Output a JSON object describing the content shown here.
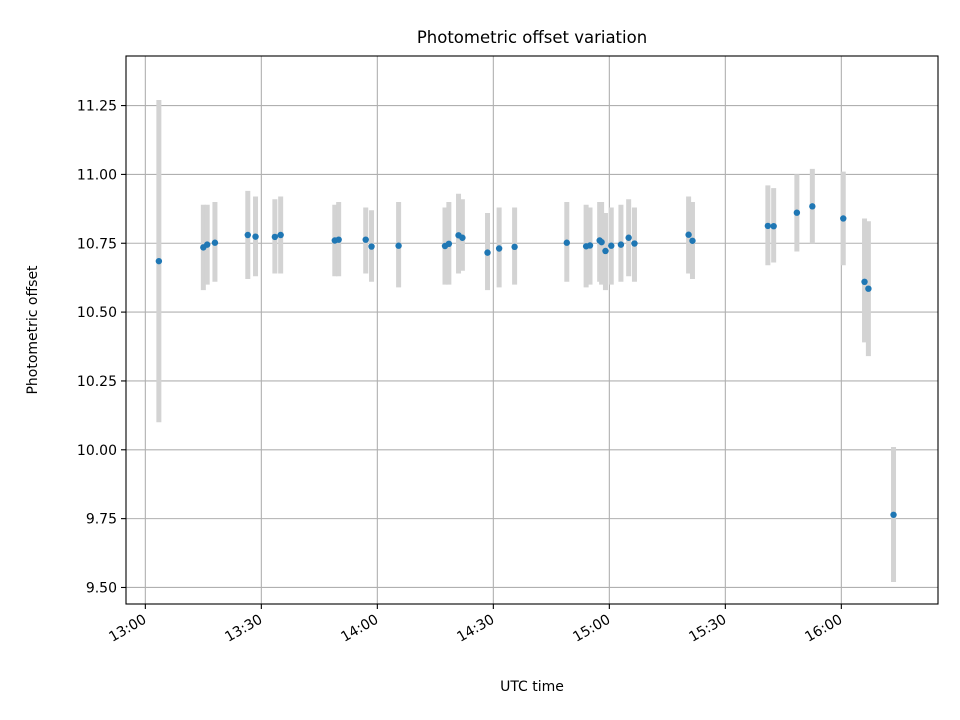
{
  "chart_data": {
    "type": "scatter",
    "title": "Photometric offset variation",
    "xlabel": "UTC time",
    "ylabel": "Photometric offset",
    "x_unit": "time of day (HH:MM)",
    "xlim": [
      "12:55",
      "16:25"
    ],
    "ylim": [
      9.44,
      11.43
    ],
    "xticks": [
      "13:00",
      "13:30",
      "14:00",
      "14:30",
      "15:00",
      "15:30",
      "16:00"
    ],
    "yticks": [
      "9.50",
      "9.75",
      "10.00",
      "10.25",
      "10.50",
      "10.75",
      "11.00",
      "11.25"
    ],
    "grid": true,
    "xtick_rotation": 30,
    "marker_color": "#1f77b4",
    "errorbar_color": "#d3d3d3",
    "series": [
      {
        "points": [
          {
            "x": "13:03:30",
            "y": 10.685,
            "ylo": 10.1,
            "yhi": 11.27
          },
          {
            "x": "13:15:00",
            "y": 10.735,
            "ylo": 10.58,
            "yhi": 10.89
          },
          {
            "x": "13:16:00",
            "y": 10.745,
            "ylo": 10.6,
            "yhi": 10.89
          },
          {
            "x": "13:18:00",
            "y": 10.752,
            "ylo": 10.61,
            "yhi": 10.9
          },
          {
            "x": "13:26:30",
            "y": 10.78,
            "ylo": 10.62,
            "yhi": 10.94
          },
          {
            "x": "13:28:30",
            "y": 10.774,
            "ylo": 10.63,
            "yhi": 10.92
          },
          {
            "x": "13:33:30",
            "y": 10.773,
            "ylo": 10.64,
            "yhi": 10.91
          },
          {
            "x": "13:35:00",
            "y": 10.78,
            "ylo": 10.64,
            "yhi": 10.92
          },
          {
            "x": "13:49:00",
            "y": 10.76,
            "ylo": 10.63,
            "yhi": 10.89
          },
          {
            "x": "13:50:00",
            "y": 10.763,
            "ylo": 10.63,
            "yhi": 10.9
          },
          {
            "x": "13:57:00",
            "y": 10.763,
            "ylo": 10.64,
            "yhi": 10.88
          },
          {
            "x": "13:58:30",
            "y": 10.738,
            "ylo": 10.61,
            "yhi": 10.87
          },
          {
            "x": "14:05:30",
            "y": 10.741,
            "ylo": 10.59,
            "yhi": 10.9
          },
          {
            "x": "14:17:30",
            "y": 10.74,
            "ylo": 10.6,
            "yhi": 10.88
          },
          {
            "x": "14:18:30",
            "y": 10.748,
            "ylo": 10.6,
            "yhi": 10.9
          },
          {
            "x": "14:21:00",
            "y": 10.779,
            "ylo": 10.64,
            "yhi": 10.93
          },
          {
            "x": "14:22:00",
            "y": 10.77,
            "ylo": 10.65,
            "yhi": 10.91
          },
          {
            "x": "14:28:30",
            "y": 10.716,
            "ylo": 10.58,
            "yhi": 10.86
          },
          {
            "x": "14:31:30",
            "y": 10.731,
            "ylo": 10.59,
            "yhi": 10.88
          },
          {
            "x": "14:35:30",
            "y": 10.737,
            "ylo": 10.6,
            "yhi": 10.88
          },
          {
            "x": "14:49:00",
            "y": 10.752,
            "ylo": 10.61,
            "yhi": 10.9
          },
          {
            "x": "14:54:00",
            "y": 10.739,
            "ylo": 10.59,
            "yhi": 10.89
          },
          {
            "x": "14:55:00",
            "y": 10.742,
            "ylo": 10.6,
            "yhi": 10.88
          },
          {
            "x": "14:57:30",
            "y": 10.76,
            "ylo": 10.61,
            "yhi": 10.9
          },
          {
            "x": "14:58:00",
            "y": 10.754,
            "ylo": 10.6,
            "yhi": 10.9
          },
          {
            "x": "14:59:00",
            "y": 10.722,
            "ylo": 10.58,
            "yhi": 10.86
          },
          {
            "x": "15:00:30",
            "y": 10.741,
            "ylo": 10.6,
            "yhi": 10.88
          },
          {
            "x": "15:03:00",
            "y": 10.745,
            "ylo": 10.61,
            "yhi": 10.89
          },
          {
            "x": "15:05:00",
            "y": 10.77,
            "ylo": 10.63,
            "yhi": 10.91
          },
          {
            "x": "15:06:30",
            "y": 10.749,
            "ylo": 10.61,
            "yhi": 10.88
          },
          {
            "x": "15:20:30",
            "y": 10.781,
            "ylo": 10.64,
            "yhi": 10.92
          },
          {
            "x": "15:21:30",
            "y": 10.759,
            "ylo": 10.62,
            "yhi": 10.9
          },
          {
            "x": "15:41:00",
            "y": 10.813,
            "ylo": 10.67,
            "yhi": 10.96
          },
          {
            "x": "15:42:30",
            "y": 10.812,
            "ylo": 10.68,
            "yhi": 10.95
          },
          {
            "x": "15:48:30",
            "y": 10.861,
            "ylo": 10.72,
            "yhi": 11.0
          },
          {
            "x": "15:52:30",
            "y": 10.884,
            "ylo": 10.75,
            "yhi": 11.02
          },
          {
            "x": "16:00:30",
            "y": 10.84,
            "ylo": 10.67,
            "yhi": 11.01
          },
          {
            "x": "16:06:00",
            "y": 10.61,
            "ylo": 10.39,
            "yhi": 10.84
          },
          {
            "x": "16:07:00",
            "y": 10.585,
            "ylo": 10.34,
            "yhi": 10.83
          },
          {
            "x": "16:13:30",
            "y": 9.764,
            "ylo": 9.52,
            "yhi": 10.01
          }
        ]
      }
    ]
  }
}
